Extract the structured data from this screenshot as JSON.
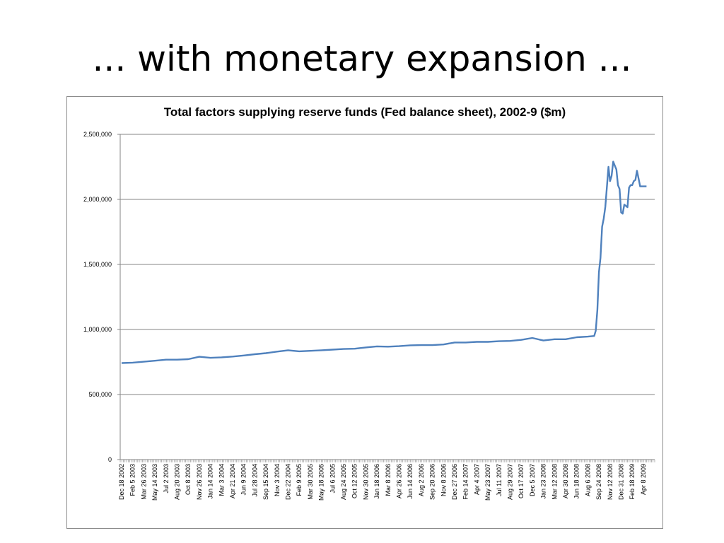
{
  "slide": {
    "title": "... with monetary expansion ..."
  },
  "colors": {
    "line": "#4f81bd",
    "grid": "#868686",
    "axis": "#868686",
    "frame": "#8c8c8c"
  },
  "chart_data": {
    "type": "line",
    "title": "Total factors supplying reserve funds (Fed balance sheet), 2002-9 ($m)",
    "xlabel": "",
    "ylabel": "",
    "ylim": [
      0,
      2500000
    ],
    "yticks": [
      0,
      500000,
      1000000,
      1500000,
      2000000,
      2500000
    ],
    "ytick_labels": [
      "0",
      "500,000",
      "1,000,000",
      "1,500,000",
      "2,000,000",
      "2,500,000"
    ],
    "grid": true,
    "legend": "none",
    "x_tick_labels": [
      "Dec 18 2002",
      "Feb 5 2003",
      "Mar 26 2003",
      "May 14 2003",
      "Jul 2 2003",
      "Aug 20 2003",
      "Oct 8 2003",
      "Nov 26 2003",
      "Jan 14 2004",
      "Mar 3 2004",
      "Apr 21 2004",
      "Jun 9 2004",
      "Jul 28 2004",
      "Sep 15 2004",
      "Nov 3 2004",
      "Dec 22 2004",
      "Feb 9 2005",
      "Mar 30 2005",
      "May 18 2005",
      "Jul 6 2005",
      "Aug 24 2005",
      "Oct 12 2005",
      "Nov 30 2005",
      "Jan 18 2006",
      "Mar 8 2006",
      "Apr 26 2006",
      "Jun 14 2006",
      "Aug 2 2006",
      "Sep 20 2006",
      "Nov 8 2006",
      "Dec 27 2006",
      "Feb 14 2007",
      "Apr 4 2007",
      "May 23 2007",
      "Jul 11 2007",
      "Aug 29 2007",
      "Oct 17 2007",
      "Dec 5 2007",
      "Jan 23 2008",
      "Mar 12 2008",
      "Apr 30 2008",
      "Jun 18 2008",
      "Aug 6 2008",
      "Sep 24 2008",
      "Nov 12 2008",
      "Dec 31 2008",
      "Feb 18 2009",
      "Apr 8 2009"
    ],
    "series": [
      {
        "x": [
          "Dec 18 2002",
          "Feb 5 2003",
          "Mar 26 2003",
          "May 14 2003",
          "Jul 2 2003",
          "Aug 20 2003",
          "Oct 8 2003",
          "Nov 26 2003",
          "Jan 14 2004",
          "Mar 3 2004",
          "Apr 21 2004",
          "Jun 9 2004",
          "Jul 28 2004",
          "Sep 15 2004",
          "Nov 3 2004",
          "Dec 22 2004",
          "Feb 9 2005",
          "Mar 30 2005",
          "May 18 2005",
          "Jul 6 2005",
          "Aug 24 2005",
          "Oct 12 2005",
          "Nov 30 2005",
          "Jan 18 2006",
          "Mar 8 2006",
          "Apr 26 2006",
          "Jun 14 2006",
          "Aug 2 2006",
          "Sep 20 2006",
          "Nov 8 2006",
          "Dec 27 2006",
          "Feb 14 2007",
          "Apr 4 2007",
          "May 23 2007",
          "Jul 11 2007",
          "Aug 29 2007",
          "Oct 17 2007",
          "Dec 5 2007",
          "Jan 23 2008",
          "Mar 12 2008",
          "Apr 30 2008",
          "Jun 18 2008",
          "Aug 6 2008",
          "Sep 3 2008",
          "Sep 10 2008",
          "Sep 17 2008",
          "Sep 24 2008",
          "Oct 1 2008",
          "Oct 8 2008",
          "Oct 15 2008",
          "Oct 22 2008",
          "Oct 29 2008",
          "Nov 5 2008",
          "Nov 12 2008",
          "Nov 19 2008",
          "Nov 26 2008",
          "Dec 3 2008",
          "Dec 10 2008",
          "Dec 17 2008",
          "Dec 24 2008",
          "Dec 31 2008",
          "Jan 7 2009",
          "Jan 14 2009",
          "Jan 21 2009",
          "Jan 28 2009",
          "Feb 4 2009",
          "Feb 11 2009",
          "Feb 18 2009",
          "Feb 25 2009",
          "Mar 4 2009",
          "Mar 11 2009",
          "Mar 18 2009",
          "Mar 25 2009",
          "Apr 1 2009",
          "Apr 8 2009",
          "Apr 15 2009",
          "Apr 22 2009"
        ],
        "values": [
          742000,
          745000,
          752000,
          760000,
          768000,
          768000,
          772000,
          790000,
          782000,
          786000,
          792000,
          800000,
          810000,
          818000,
          830000,
          840000,
          832000,
          836000,
          840000,
          845000,
          850000,
          852000,
          862000,
          870000,
          868000,
          872000,
          878000,
          880000,
          880000,
          885000,
          900000,
          900000,
          905000,
          905000,
          910000,
          912000,
          920000,
          935000,
          915000,
          925000,
          925000,
          940000,
          945000,
          950000,
          990000,
          1150000,
          1440000,
          1550000,
          1790000,
          1850000,
          1940000,
          2090000,
          2250000,
          2140000,
          2180000,
          2290000,
          2260000,
          2230000,
          2110000,
          2080000,
          1900000,
          1890000,
          1960000,
          1950000,
          1940000,
          2090000,
          2110000,
          2110000,
          2140000,
          2150000,
          2220000,
          2160000,
          2100000,
          2100000,
          2100000,
          2100000,
          2100000
        ]
      }
    ]
  }
}
